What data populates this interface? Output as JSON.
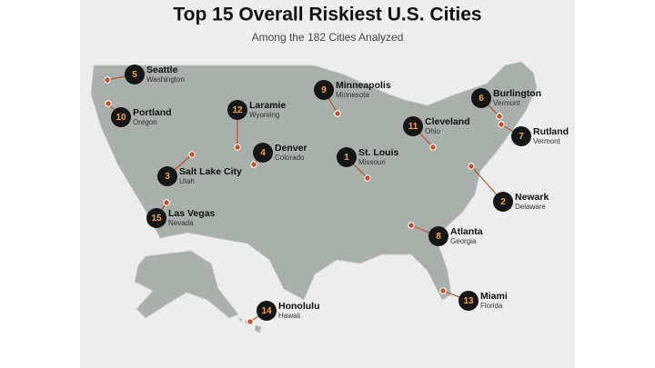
{
  "header": {
    "title": "Top 15 Overall Riskiest U.S. Cities",
    "subtitle": "Among the 182 Cities Analyzed"
  },
  "cities": [
    {
      "rank": 1,
      "name": "St. Louis",
      "state": "Missouri"
    },
    {
      "rank": 2,
      "name": "Newark",
      "state": "Delaware"
    },
    {
      "rank": 3,
      "name": "Salt Lake City",
      "state": "Utah"
    },
    {
      "rank": 4,
      "name": "Denver",
      "state": "Colorado"
    },
    {
      "rank": 5,
      "name": "Seattle",
      "state": "Washington"
    },
    {
      "rank": 6,
      "name": "Burlington",
      "state": "Vermont"
    },
    {
      "rank": 7,
      "name": "Rutland",
      "state": "Vermont"
    },
    {
      "rank": 8,
      "name": "Atlanta",
      "state": "Georgia"
    },
    {
      "rank": 9,
      "name": "Minneapolis",
      "state": "Minnesota"
    },
    {
      "rank": 10,
      "name": "Portland",
      "state": "Oregon"
    },
    {
      "rank": 11,
      "name": "Cleveland",
      "state": "Ohio"
    },
    {
      "rank": 12,
      "name": "Laramie",
      "state": "Wyoming"
    },
    {
      "rank": 13,
      "name": "Miami",
      "state": "Florida"
    },
    {
      "rank": 14,
      "name": "Honolulu",
      "state": "Hawaii"
    },
    {
      "rank": 15,
      "name": "Las Vegas",
      "state": "Nevada"
    }
  ]
}
